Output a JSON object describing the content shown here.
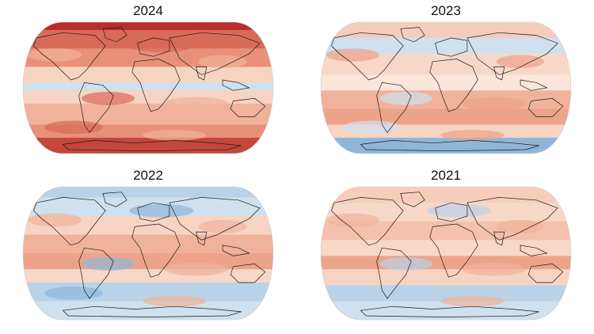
{
  "figure": {
    "panels": [
      {
        "title": "2024",
        "ramp": [
          "#f0b29a",
          "#e9907a",
          "#d86a5a",
          "#b92d2b"
        ],
        "tone": "very-warm",
        "bands": [
          {
            "y0": 0.0,
            "y1": 0.06,
            "c": "#b92d2b"
          },
          {
            "y0": 0.06,
            "y1": 0.2,
            "c": "#d86a5a"
          },
          {
            "y0": 0.2,
            "y1": 0.34,
            "c": "#e9907a"
          },
          {
            "y0": 0.34,
            "y1": 0.46,
            "c": "#f7d3c2"
          },
          {
            "y0": 0.46,
            "y1": 0.52,
            "c": "#cfe0ee"
          },
          {
            "y0": 0.52,
            "y1": 0.62,
            "c": "#f7d3c2"
          },
          {
            "y0": 0.62,
            "y1": 0.78,
            "c": "#f0b29a"
          },
          {
            "y0": 0.78,
            "y1": 0.88,
            "c": "#e9907a"
          },
          {
            "y0": 0.88,
            "y1": 1.0,
            "c": "#c4463c"
          }
        ]
      },
      {
        "title": "2023",
        "tone": "mixed-warm",
        "bands": [
          {
            "y0": 0.0,
            "y1": 0.12,
            "c": "#f6cdbb"
          },
          {
            "y0": 0.12,
            "y1": 0.24,
            "c": "#cfe0ee"
          },
          {
            "y0": 0.24,
            "y1": 0.4,
            "c": "#f7d8c8"
          },
          {
            "y0": 0.4,
            "y1": 0.52,
            "c": "#fbe6da"
          },
          {
            "y0": 0.52,
            "y1": 0.66,
            "c": "#f0b29a"
          },
          {
            "y0": 0.66,
            "y1": 0.78,
            "c": "#eda38a"
          },
          {
            "y0": 0.78,
            "y1": 0.88,
            "c": "#f7d3c2"
          },
          {
            "y0": 0.88,
            "y1": 1.0,
            "c": "#8fb6d9"
          }
        ]
      },
      {
        "title": "2022",
        "tone": "mixed-cool",
        "bands": [
          {
            "y0": 0.0,
            "y1": 0.08,
            "c": "#b9d2e8"
          },
          {
            "y0": 0.08,
            "y1": 0.22,
            "c": "#cfe0ee"
          },
          {
            "y0": 0.22,
            "y1": 0.36,
            "c": "#f7d3c2"
          },
          {
            "y0": 0.36,
            "y1": 0.5,
            "c": "#f0b29a"
          },
          {
            "y0": 0.5,
            "y1": 0.62,
            "c": "#eda38a"
          },
          {
            "y0": 0.62,
            "y1": 0.72,
            "c": "#f7d8c8"
          },
          {
            "y0": 0.72,
            "y1": 0.86,
            "c": "#b9d2e8"
          },
          {
            "y0": 0.86,
            "y1": 1.0,
            "c": "#cfe0ee"
          }
        ]
      },
      {
        "title": "2021",
        "tone": "mixed",
        "bands": [
          {
            "y0": 0.0,
            "y1": 0.12,
            "c": "#f6cdbb"
          },
          {
            "y0": 0.12,
            "y1": 0.26,
            "c": "#f7d8c8"
          },
          {
            "y0": 0.26,
            "y1": 0.4,
            "c": "#f3c1ac"
          },
          {
            "y0": 0.4,
            "y1": 0.52,
            "c": "#f7d8c8"
          },
          {
            "y0": 0.52,
            "y1": 0.62,
            "c": "#eda38a"
          },
          {
            "y0": 0.62,
            "y1": 0.74,
            "c": "#f7d3c2"
          },
          {
            "y0": 0.74,
            "y1": 0.86,
            "c": "#b9d2e8"
          },
          {
            "y0": 0.86,
            "y1": 1.0,
            "c": "#cfe0ee"
          }
        ]
      }
    ],
    "colors": {
      "warm_max": "#b92d2b",
      "warm": "#e9907a",
      "neutral": "#fbe6da",
      "cool": "#b9d2e8",
      "cool_max": "#6f9fcb",
      "coastline": "#1a1a1a"
    }
  }
}
